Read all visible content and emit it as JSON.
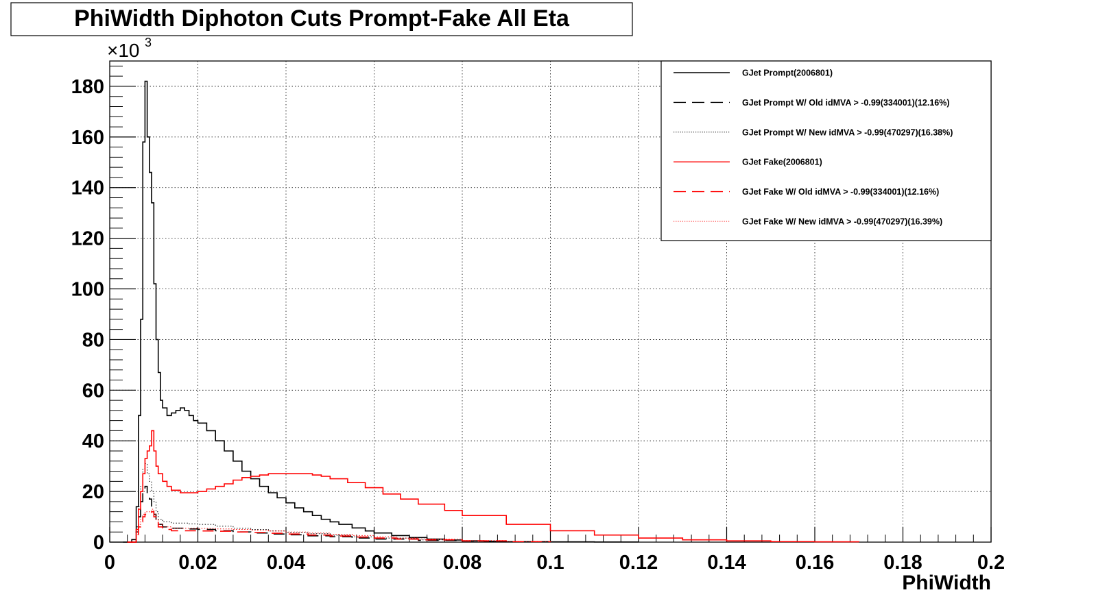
{
  "chart_data": {
    "type": "line",
    "title": "PhiWidth Diphoton Cuts Prompt-Fake All Eta",
    "xlabel": "PhiWidth",
    "ylabel": "",
    "y_multiplier_label": "×10",
    "y_multiplier_exp": "3",
    "xlim": [
      0,
      0.2
    ],
    "ylim": [
      0,
      190
    ],
    "x_ticks": [
      "0",
      "0.02",
      "0.04",
      "0.06",
      "0.08",
      "0.1",
      "0.12",
      "0.14",
      "0.16",
      "0.18",
      "0.2"
    ],
    "y_ticks": [
      "0",
      "20",
      "40",
      "60",
      "80",
      "100",
      "120",
      "140",
      "160",
      "180"
    ],
    "grid": true,
    "legend_position": "top-right",
    "series": [
      {
        "name": "GJet Prompt(2006801)",
        "color": "#000000",
        "dash": "solid",
        "x": [
          0.003,
          0.005,
          0.006,
          0.0065,
          0.007,
          0.0075,
          0.008,
          0.0085,
          0.009,
          0.0095,
          0.01,
          0.0105,
          0.011,
          0.0115,
          0.012,
          0.013,
          0.014,
          0.015,
          0.016,
          0.017,
          0.018,
          0.019,
          0.02,
          0.022,
          0.024,
          0.026,
          0.028,
          0.03,
          0.032,
          0.034,
          0.036,
          0.038,
          0.04,
          0.042,
          0.044,
          0.046,
          0.048,
          0.05,
          0.052,
          0.055,
          0.058,
          0.06,
          0.064,
          0.068,
          0.072,
          0.076,
          0.08,
          0.085,
          0.09,
          0.1,
          0.11,
          0.12
        ],
        "y": [
          0,
          1,
          14,
          50,
          88,
          158,
          182,
          160,
          146,
          134,
          102,
          80,
          67,
          56,
          53,
          50,
          51,
          52,
          53,
          52,
          50,
          48,
          47,
          44,
          40,
          36,
          32,
          28,
          25,
          22,
          19.5,
          17.5,
          15.5,
          13.5,
          12,
          10.5,
          9,
          8,
          7,
          5.6,
          4.4,
          3.6,
          2.6,
          1.8,
          1.2,
          0.8,
          0.5,
          0.3,
          0.2,
          0.1,
          0.05,
          0
        ]
      },
      {
        "name": "GJet Prompt W/ Old idMVA > -0.99(334001)(12.16%)",
        "color": "#000000",
        "dash": "long",
        "x": [
          0.004,
          0.006,
          0.0065,
          0.007,
          0.0075,
          0.008,
          0.0085,
          0.009,
          0.0095,
          0.01,
          0.0105,
          0.011,
          0.012,
          0.014,
          0.016,
          0.018,
          0.02,
          0.024,
          0.028,
          0.032,
          0.036,
          0.04,
          0.045,
          0.05,
          0.055,
          0.06,
          0.07,
          0.08,
          0.09,
          0.1
        ],
        "y": [
          0,
          4,
          10,
          16,
          20,
          22,
          19,
          17,
          13,
          11,
          9,
          7,
          6,
          5.5,
          5.5,
          5.2,
          5,
          4.5,
          4,
          3.6,
          3.2,
          2.9,
          2.5,
          2.1,
          1.6,
          1.2,
          0.7,
          0.4,
          0.2,
          0
        ]
      },
      {
        "name": "GJet Prompt W/ New idMVA > -0.99(470297)(16.38%)",
        "color": "#000000",
        "dash": "dot",
        "x": [
          0.004,
          0.006,
          0.0065,
          0.007,
          0.0075,
          0.008,
          0.0085,
          0.009,
          0.0095,
          0.01,
          0.0105,
          0.011,
          0.012,
          0.014,
          0.016,
          0.018,
          0.02,
          0.024,
          0.028,
          0.032,
          0.036,
          0.04,
          0.045,
          0.05,
          0.055,
          0.06,
          0.07,
          0.08,
          0.09,
          0.1
        ],
        "y": [
          0,
          6,
          14,
          22,
          29,
          31,
          27,
          24,
          20,
          16,
          12,
          9,
          8,
          7.5,
          7.5,
          7.2,
          7,
          6.3,
          5.5,
          5,
          4.4,
          3.9,
          3.3,
          2.7,
          2.1,
          1.6,
          0.9,
          0.5,
          0.2,
          0
        ]
      },
      {
        "name": "GJet Fake(2006801)",
        "color": "#ff0000",
        "dash": "solid",
        "x": [
          0.004,
          0.006,
          0.0065,
          0.007,
          0.0075,
          0.008,
          0.0085,
          0.009,
          0.0095,
          0.01,
          0.0105,
          0.011,
          0.012,
          0.013,
          0.014,
          0.016,
          0.018,
          0.02,
          0.022,
          0.024,
          0.026,
          0.028,
          0.03,
          0.032,
          0.034,
          0.036,
          0.038,
          0.04,
          0.042,
          0.044,
          0.046,
          0.048,
          0.05,
          0.054,
          0.058,
          0.062,
          0.066,
          0.07,
          0.076,
          0.08,
          0.09,
          0.1,
          0.11,
          0.12,
          0.13,
          0.14,
          0.15,
          0.16,
          0.17
        ],
        "y": [
          0,
          5,
          13,
          20,
          27,
          33,
          36,
          38,
          44,
          36,
          30,
          27,
          24,
          22,
          20.5,
          19.5,
          19.5,
          20,
          21,
          22,
          23,
          24.5,
          25.5,
          26,
          26.5,
          27,
          27,
          27,
          27,
          27,
          26.5,
          26,
          25,
          23.5,
          21.5,
          19,
          17,
          15,
          12.5,
          10.5,
          7,
          4.5,
          2.8,
          1.6,
          0.9,
          0.5,
          0.2,
          0.1,
          0
        ]
      },
      {
        "name": "GJet Fake W/ Old idMVA > -0.99(334001)(12.16%)",
        "color": "#ff0000",
        "dash": "long",
        "x": [
          0.004,
          0.006,
          0.0065,
          0.007,
          0.0075,
          0.008,
          0.0085,
          0.009,
          0.0095,
          0.01,
          0.0105,
          0.011,
          0.012,
          0.014,
          0.016,
          0.018,
          0.02,
          0.024,
          0.028,
          0.032,
          0.036,
          0.04,
          0.045,
          0.05,
          0.055,
          0.06,
          0.065,
          0.07,
          0.08,
          0.09,
          0.1
        ],
        "y": [
          0,
          3,
          6,
          8,
          10,
          11,
          11,
          11,
          12,
          10,
          8,
          6,
          5,
          4.5,
          4.5,
          4.5,
          4.4,
          4.3,
          4,
          3.8,
          3.5,
          3.2,
          2.8,
          2.4,
          2,
          1.6,
          1.2,
          0.9,
          0.5,
          0.2,
          0
        ]
      },
      {
        "name": "GJet Fake W/ New idMVA > -0.99(470297)(16.39%)",
        "color": "#ff0000",
        "dash": "dot",
        "x": [
          0.004,
          0.006,
          0.0065,
          0.007,
          0.0075,
          0.008,
          0.0085,
          0.009,
          0.0095,
          0.01,
          0.0105,
          0.011,
          0.012,
          0.014,
          0.016,
          0.018,
          0.02,
          0.024,
          0.028,
          0.032,
          0.036,
          0.04,
          0.045,
          0.05,
          0.055,
          0.06,
          0.065,
          0.07,
          0.08,
          0.09,
          0.1
        ],
        "y": [
          0,
          4,
          7,
          9,
          11,
          12,
          12,
          12,
          13,
          11,
          9,
          7,
          6,
          5.5,
          5.5,
          5.5,
          5.4,
          5.2,
          5,
          4.7,
          4.4,
          4,
          3.6,
          3.1,
          2.6,
          2.1,
          1.6,
          1.2,
          0.6,
          0.3,
          0
        ]
      }
    ]
  }
}
